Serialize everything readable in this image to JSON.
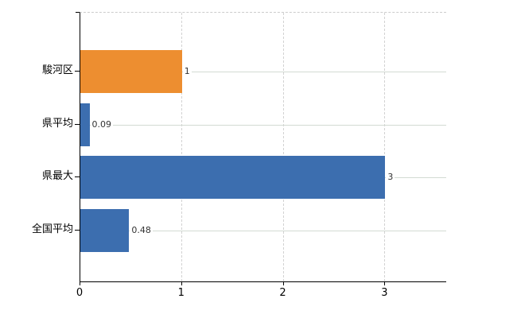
{
  "chart_data": {
    "type": "bar",
    "orientation": "horizontal",
    "title": "",
    "categories": [
      "駿河区",
      "県平均",
      "県最大",
      "全国平均"
    ],
    "values": [
      1,
      0.09,
      3,
      0.48
    ],
    "value_labels": [
      "1",
      "0.09",
      "3",
      "0.48"
    ],
    "bar_colors": [
      "#ED8E30",
      "#3C6EAF",
      "#3C6EAF",
      "#3C6EAF"
    ],
    "xlim": [
      0,
      3.6
    ],
    "x_ticks": [
      0,
      1,
      2,
      3
    ],
    "x_tick_labels": [
      "0",
      "1",
      "2",
      "3"
    ],
    "grid": true,
    "legend": "none",
    "colors": {
      "bar_orange": "#ED8E30",
      "bar_blue": "#3C6EAF",
      "grid_horizontal": "#d3dad3",
      "grid_vertical": "#d2d2d2",
      "axis": "#000000",
      "value_label_text": "#333333",
      "top_border": "#cccccc",
      "background": "#ffffff"
    }
  }
}
